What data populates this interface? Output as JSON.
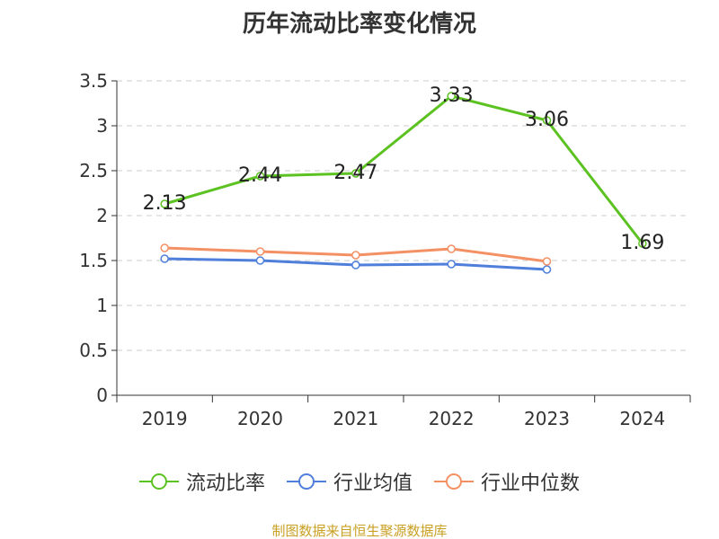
{
  "chart_data": {
    "type": "line",
    "title": "历年流动比率变化情况",
    "categories": [
      "2019",
      "2020",
      "2021",
      "2022",
      "2023",
      "2024"
    ],
    "ylim": [
      0,
      3.5
    ],
    "yticks": [
      "0",
      "0.5",
      "1",
      "1.5",
      "2",
      "2.5",
      "3",
      "3.5"
    ],
    "grid": true,
    "legend_position": "bottom",
    "series": [
      {
        "name": "流动比率",
        "color": "#5cc222",
        "values": [
          2.13,
          2.44,
          2.47,
          3.33,
          3.06,
          1.69
        ],
        "labels": [
          "2.13",
          "2.44",
          "2.47",
          "3.33",
          "3.06",
          "1.69"
        ]
      },
      {
        "name": "行业均值",
        "color": "#4f7fdb",
        "values": [
          1.52,
          1.5,
          1.45,
          1.46,
          1.4,
          null
        ]
      },
      {
        "name": "行业中位数",
        "color": "#f39064",
        "values": [
          1.64,
          1.6,
          1.56,
          1.63,
          1.49,
          null
        ]
      }
    ]
  },
  "source_note": "制图数据来自恒生聚源数据库"
}
